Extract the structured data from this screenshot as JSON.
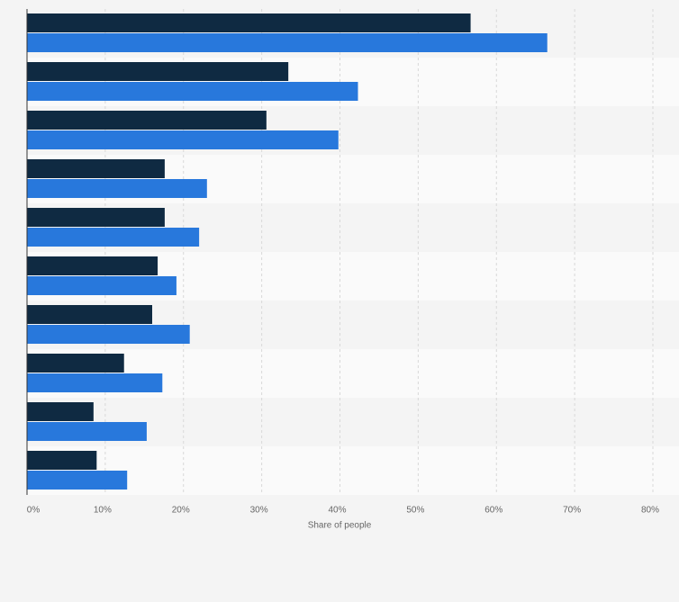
{
  "chart_data": {
    "type": "hbar",
    "categories": [
      null,
      null,
      null,
      null,
      null,
      null,
      null,
      null,
      null,
      null
    ],
    "series": [
      {
        "color": "#0f2a42",
        "values": [
          56.7,
          33.4,
          30.6,
          17.6,
          17.6,
          16.7,
          16.0,
          12.4,
          8.5,
          8.9
        ]
      },
      {
        "color": "#2878dc",
        "values": [
          66.5,
          42.3,
          39.8,
          23.0,
          22.0,
          19.1,
          20.8,
          17.3,
          15.3,
          12.8
        ]
      }
    ],
    "xlim": [
      0,
      80
    ],
    "xticks": [
      {
        "value": 0,
        "label": "0%"
      },
      {
        "value": 10,
        "label": "10%"
      },
      {
        "value": 20,
        "label": "20%"
      },
      {
        "value": 30,
        "label": "30%"
      },
      {
        "value": 40,
        "label": "40%"
      },
      {
        "value": 50,
        "label": "50%"
      },
      {
        "value": 60,
        "label": "60%"
      },
      {
        "value": 70,
        "label": "70%"
      },
      {
        "value": 80,
        "label": "80%"
      }
    ],
    "x_label": "Share of people",
    "grid": true
  }
}
